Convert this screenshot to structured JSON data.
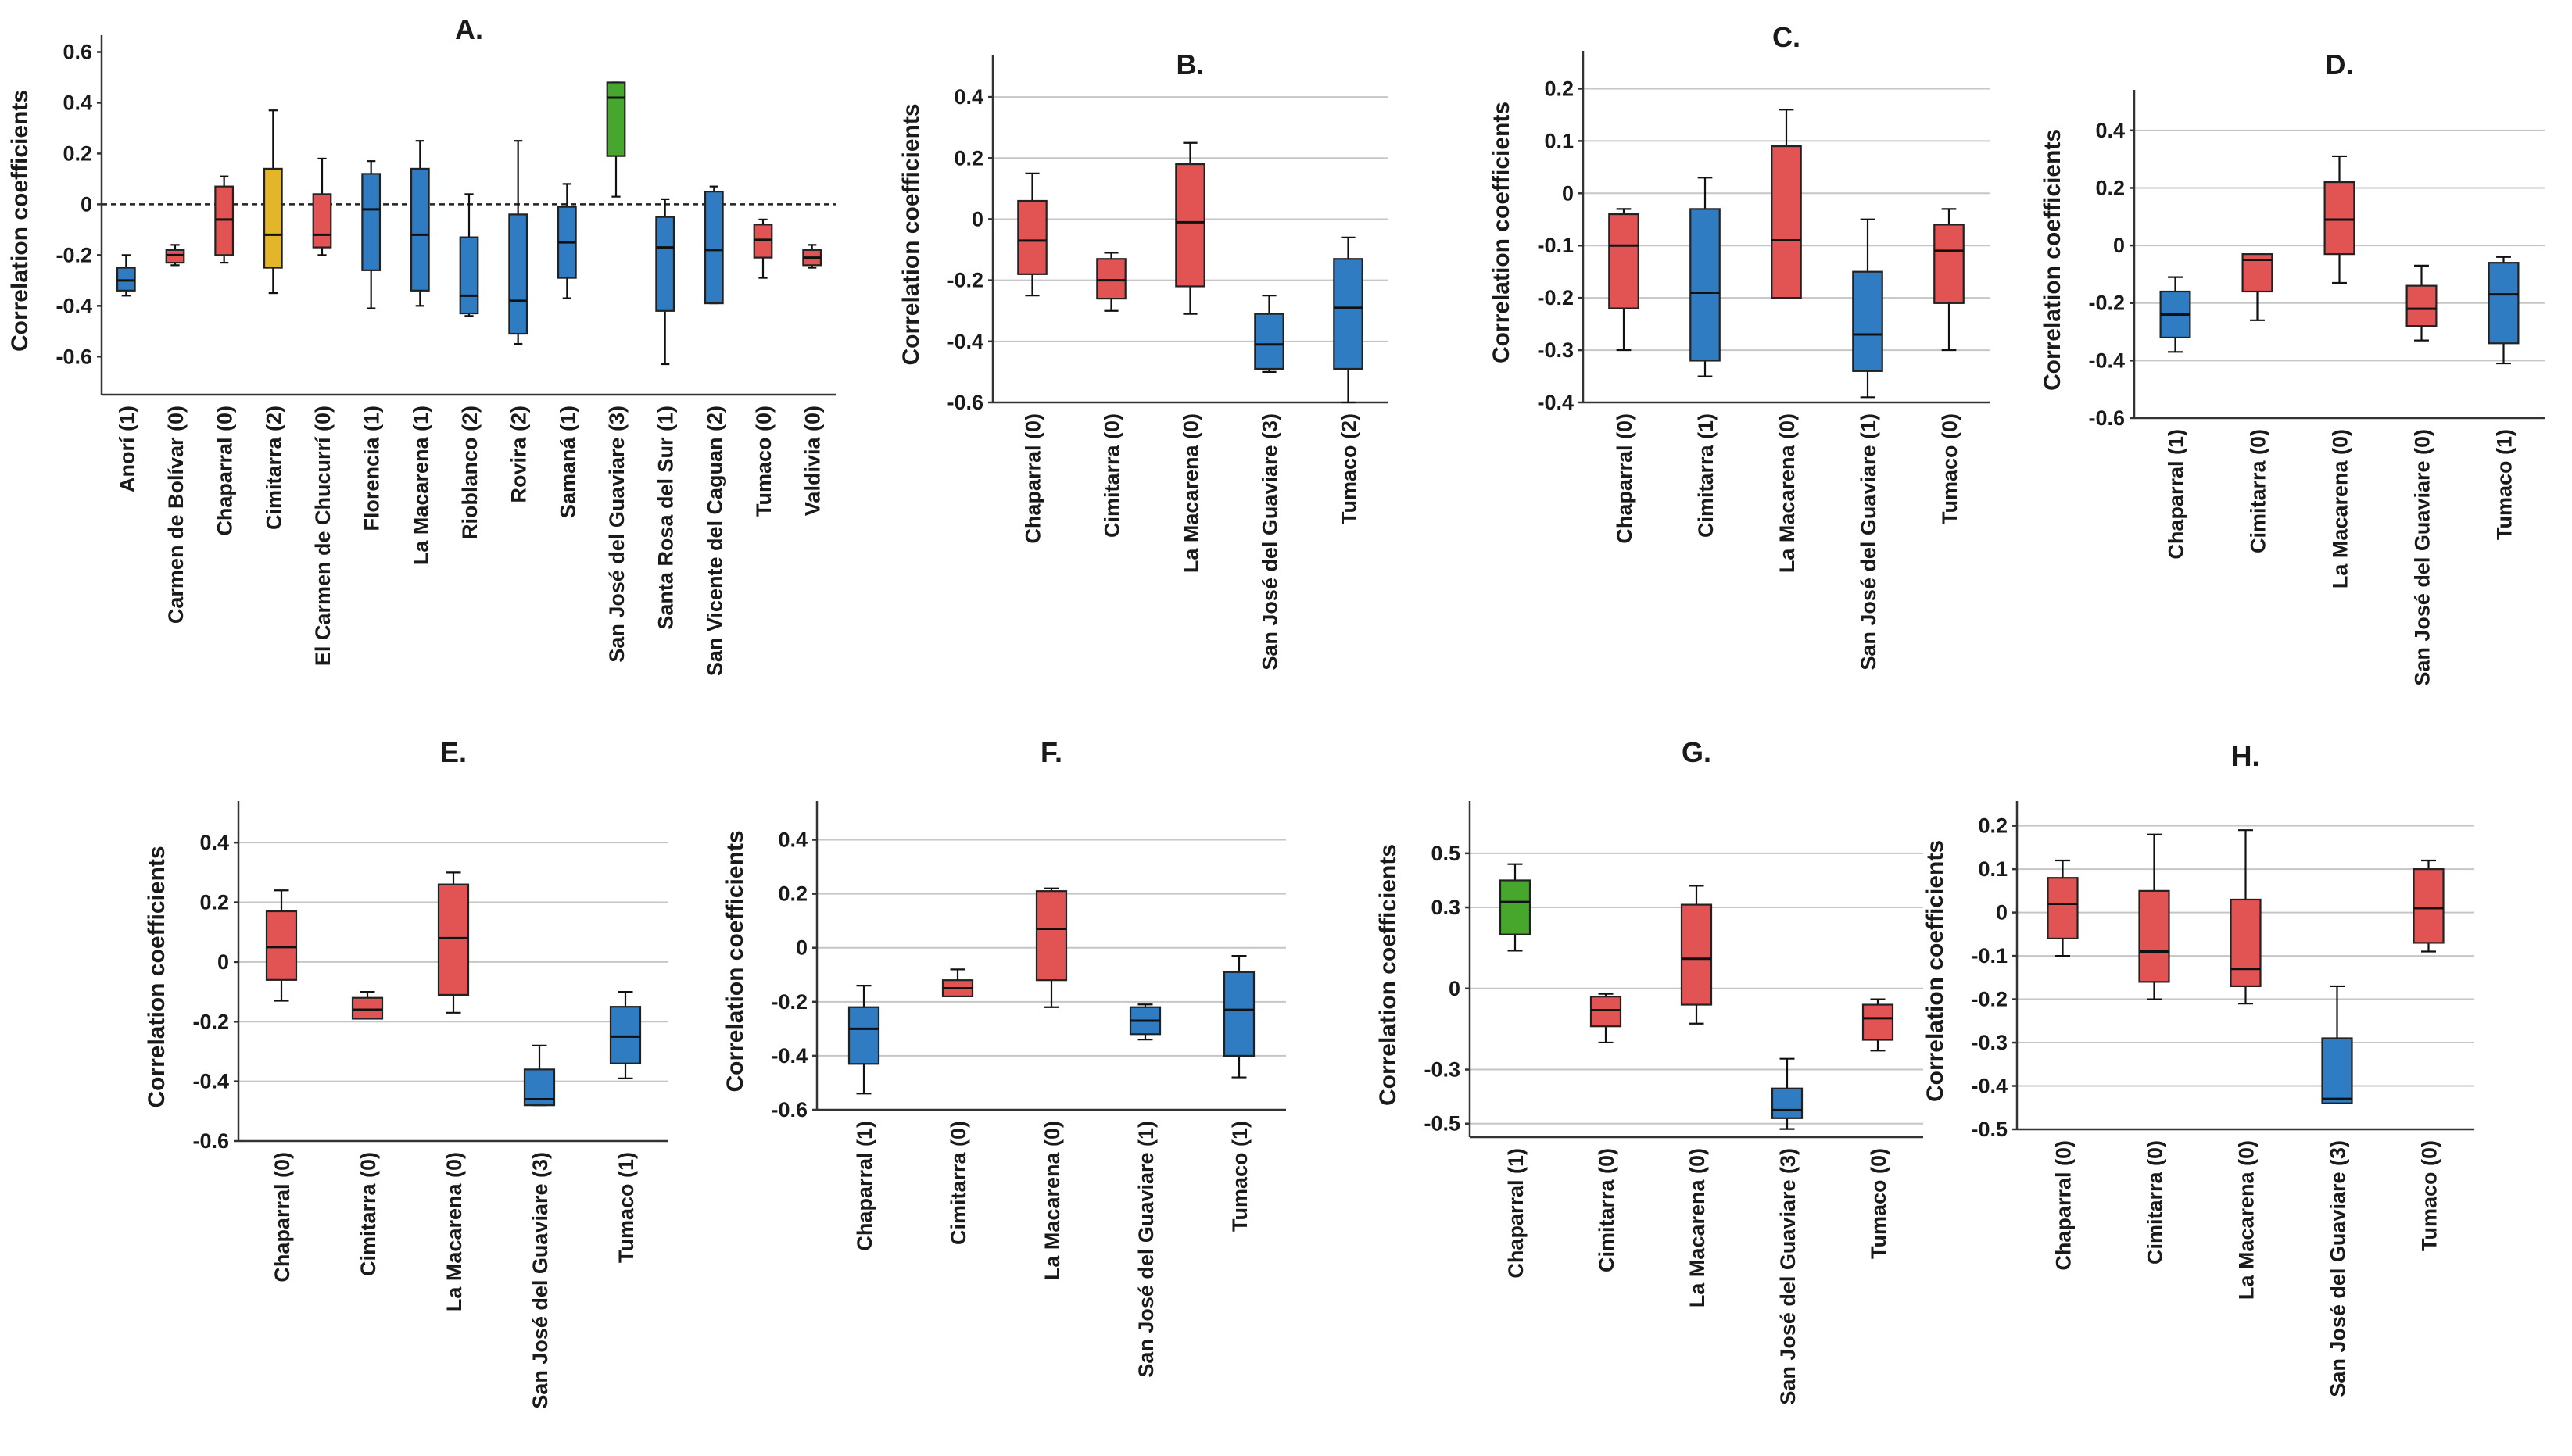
{
  "colors": {
    "red": "#e25454",
    "blue": "#2f7cc2",
    "yellow": "#e3b62a",
    "green": "#46a72c"
  },
  "chart_data": [
    {
      "type": "box",
      "title": "A.",
      "ylabel": "Correlation coefficients",
      "ylim": [
        -0.75,
        0.62
      ],
      "yticks": [
        "0.6",
        "0.4",
        "0.2",
        "0",
        "-0.2",
        "-0.4",
        "-0.6"
      ],
      "reference_line": 0,
      "grid": false,
      "boxes": [
        {
          "label": "Anorí (1)",
          "color": "blue",
          "min": -0.36,
          "q1": -0.34,
          "median": -0.3,
          "q3": -0.25,
          "max": -0.2
        },
        {
          "label": "Carmen de Bolívar (0)",
          "color": "red",
          "min": -0.24,
          "q1": -0.23,
          "median": -0.2,
          "q3": -0.18,
          "max": -0.16
        },
        {
          "label": "Chaparral (0)",
          "color": "red",
          "min": -0.23,
          "q1": -0.2,
          "median": -0.06,
          "q3": 0.07,
          "max": 0.11
        },
        {
          "label": "Cimitarra (2)",
          "color": "yellow",
          "min": -0.35,
          "q1": -0.25,
          "median": -0.12,
          "q3": 0.14,
          "max": 0.37
        },
        {
          "label": "El Carmen de Chucurrí (0)",
          "color": "red",
          "min": -0.2,
          "q1": -0.17,
          "median": -0.12,
          "q3": 0.04,
          "max": 0.18
        },
        {
          "label": "Florencia (1)",
          "color": "blue",
          "min": -0.41,
          "q1": -0.26,
          "median": -0.02,
          "q3": 0.12,
          "max": 0.17
        },
        {
          "label": "La Macarena (1)",
          "color": "blue",
          "min": -0.4,
          "q1": -0.34,
          "median": -0.12,
          "q3": 0.14,
          "max": 0.25
        },
        {
          "label": "Rioblanco (2)",
          "color": "blue",
          "min": -0.44,
          "q1": -0.43,
          "median": -0.36,
          "q3": -0.13,
          "max": 0.04
        },
        {
          "label": "Rovira (2)",
          "color": "blue",
          "min": -0.55,
          "q1": -0.51,
          "median": -0.38,
          "q3": -0.04,
          "max": 0.25
        },
        {
          "label": "Samaná (1)",
          "color": "blue",
          "min": -0.37,
          "q1": -0.29,
          "median": -0.15,
          "q3": -0.01,
          "max": 0.08
        },
        {
          "label": "San José del Guaviare (3)",
          "color": "green",
          "min": 0.03,
          "q1": 0.19,
          "median": 0.42,
          "q3": 0.48,
          "max": 0.48
        },
        {
          "label": "Santa Rosa del Sur (1)",
          "color": "blue",
          "min": -0.63,
          "q1": -0.42,
          "median": -0.17,
          "q3": -0.05,
          "max": 0.02
        },
        {
          "label": "San Vicente del Caguan (2)",
          "color": "blue",
          "min": -0.39,
          "q1": -0.39,
          "median": -0.18,
          "q3": 0.05,
          "max": 0.07
        },
        {
          "label": "Tumaco (0)",
          "color": "red",
          "min": -0.29,
          "q1": -0.21,
          "median": -0.14,
          "q3": -0.08,
          "max": -0.06
        },
        {
          "label": "Valdivia (0)",
          "color": "red",
          "min": -0.25,
          "q1": -0.24,
          "median": -0.21,
          "q3": -0.18,
          "max": -0.16
        }
      ]
    },
    {
      "type": "box",
      "title": "B.",
      "ylabel": "Correlation coefficients",
      "ylim": [
        -0.6,
        0.5
      ],
      "yticks": [
        "0.4",
        "0.2",
        "0",
        "-0.2",
        "-0.4",
        "-0.6"
      ],
      "grid": true,
      "boxes": [
        {
          "label": "Chaparral (0)",
          "color": "red",
          "min": -0.25,
          "q1": -0.18,
          "median": -0.07,
          "q3": 0.06,
          "max": 0.15
        },
        {
          "label": "Cimitarra (0)",
          "color": "red",
          "min": -0.3,
          "q1": -0.26,
          "median": -0.2,
          "q3": -0.13,
          "max": -0.11
        },
        {
          "label": "La Macarena (0)",
          "color": "red",
          "min": -0.31,
          "q1": -0.22,
          "median": -0.01,
          "q3": 0.18,
          "max": 0.25
        },
        {
          "label": "San José del Guaviare (3)",
          "color": "blue",
          "min": -0.5,
          "q1": -0.49,
          "median": -0.41,
          "q3": -0.31,
          "max": -0.25
        },
        {
          "label": "Tumaco (2)",
          "color": "blue",
          "min": -0.6,
          "q1": -0.49,
          "median": -0.29,
          "q3": -0.13,
          "max": -0.06
        }
      ]
    },
    {
      "type": "box",
      "title": "C.",
      "ylabel": "Correlation coefficients",
      "ylim": [
        -0.4,
        0.25
      ],
      "yticks": [
        "0.2",
        "0.1",
        "0",
        "-0.1",
        "-0.2",
        "-0.3",
        "-0.4"
      ],
      "grid": true,
      "boxes": [
        {
          "label": "Chaparral (0)",
          "color": "red",
          "min": -0.3,
          "q1": -0.22,
          "median": -0.1,
          "q3": -0.04,
          "max": -0.03
        },
        {
          "label": "Cimitarra (1)",
          "color": "blue",
          "min": -0.35,
          "q1": -0.32,
          "median": -0.19,
          "q3": -0.03,
          "max": 0.03
        },
        {
          "label": "La Macarena (0)",
          "color": "red",
          "min": -0.2,
          "q1": -0.2,
          "median": -0.09,
          "q3": 0.09,
          "max": 0.16
        },
        {
          "label": "San José del Guaviare (1)",
          "color": "blue",
          "min": -0.39,
          "q1": -0.34,
          "median": -0.27,
          "q3": -0.15,
          "max": -0.05
        },
        {
          "label": "Tumaco (0)",
          "color": "red",
          "min": -0.3,
          "q1": -0.21,
          "median": -0.11,
          "q3": -0.06,
          "max": -0.03
        }
      ]
    },
    {
      "type": "box",
      "title": "D.",
      "ylabel": "Correlation coefficients",
      "ylim": [
        -0.6,
        0.5
      ],
      "yticks": [
        "0.4",
        "0.2",
        "0",
        "-0.2",
        "-0.4",
        "-0.6"
      ],
      "grid": true,
      "boxes": [
        {
          "label": "Chaparral (1)",
          "color": "blue",
          "min": -0.37,
          "q1": -0.32,
          "median": -0.24,
          "q3": -0.16,
          "max": -0.11
        },
        {
          "label": "Cimitarra (0)",
          "color": "red",
          "min": -0.26,
          "q1": -0.16,
          "median": -0.05,
          "q3": -0.03,
          "max": -0.03
        },
        {
          "label": "La Macarena (0)",
          "color": "red",
          "min": -0.13,
          "q1": -0.03,
          "median": 0.09,
          "q3": 0.22,
          "max": 0.31
        },
        {
          "label": "San José del Guaviare (0)",
          "color": "red",
          "min": -0.33,
          "q1": -0.28,
          "median": -0.22,
          "q3": -0.14,
          "max": -0.07
        },
        {
          "label": "Tumaco (1)",
          "color": "blue",
          "min": -0.41,
          "q1": -0.34,
          "median": -0.17,
          "q3": -0.06,
          "max": -0.04
        }
      ]
    },
    {
      "type": "box",
      "title": "E.",
      "ylabel": "Correlation coefficients",
      "ylim": [
        -0.6,
        0.5
      ],
      "yticks": [
        "0.4",
        "0.2",
        "0",
        "-0.2",
        "-0.4",
        "-0.6"
      ],
      "grid": true,
      "boxes": [
        {
          "label": "Chaparral (0)",
          "color": "red",
          "min": -0.13,
          "q1": -0.06,
          "median": 0.05,
          "q3": 0.17,
          "max": 0.24
        },
        {
          "label": "Cimitarra (0)",
          "color": "red",
          "min": -0.19,
          "q1": -0.19,
          "median": -0.16,
          "q3": -0.12,
          "max": -0.1
        },
        {
          "label": "La Macarena (0)",
          "color": "red",
          "min": -0.17,
          "q1": -0.11,
          "median": 0.08,
          "q3": 0.26,
          "max": 0.3
        },
        {
          "label": "San José del Guaviare (3)",
          "color": "blue",
          "min": -0.48,
          "q1": -0.48,
          "median": -0.46,
          "q3": -0.36,
          "max": -0.28
        },
        {
          "label": "Tumaco (1)",
          "color": "blue",
          "min": -0.39,
          "q1": -0.34,
          "median": -0.25,
          "q3": -0.15,
          "max": -0.1
        }
      ]
    },
    {
      "type": "box",
      "title": "F.",
      "ylabel": "Correlation coefficients",
      "ylim": [
        -0.6,
        0.5
      ],
      "yticks": [
        "0.4",
        "0.2",
        "0",
        "-0.2",
        "-0.4",
        "-0.6"
      ],
      "grid": true,
      "boxes": [
        {
          "label": "Chaparral (1)",
          "color": "blue",
          "min": -0.54,
          "q1": -0.43,
          "median": -0.3,
          "q3": -0.22,
          "max": -0.14
        },
        {
          "label": "Cimitarra (0)",
          "color": "red",
          "min": -0.18,
          "q1": -0.18,
          "median": -0.15,
          "q3": -0.12,
          "max": -0.08
        },
        {
          "label": "La Macarena (0)",
          "color": "red",
          "min": -0.22,
          "q1": -0.12,
          "median": 0.07,
          "q3": 0.21,
          "max": 0.22
        },
        {
          "label": "San José del Guaviare (1)",
          "color": "blue",
          "min": -0.34,
          "q1": -0.32,
          "median": -0.27,
          "q3": -0.22,
          "max": -0.21
        },
        {
          "label": "Tumaco (1)",
          "color": "blue",
          "min": -0.48,
          "q1": -0.4,
          "median": -0.23,
          "q3": -0.09,
          "max": -0.03
        }
      ]
    },
    {
      "type": "box",
      "title": "G.",
      "ylabel": "Correlation coefficients",
      "ylim": [
        -0.55,
        0.65
      ],
      "yticks": [
        "0.5",
        "0.3",
        "0",
        "-0.3",
        "-0.5"
      ],
      "grid": true,
      "boxes": [
        {
          "label": "Chaparral (1)",
          "color": "green",
          "min": 0.14,
          "q1": 0.2,
          "median": 0.32,
          "q3": 0.4,
          "max": 0.46
        },
        {
          "label": "Cimitarra (0)",
          "color": "red",
          "min": -0.2,
          "q1": -0.14,
          "median": -0.08,
          "q3": -0.03,
          "max": -0.02
        },
        {
          "label": "La Macarena (0)",
          "color": "red",
          "min": -0.13,
          "q1": -0.06,
          "median": 0.11,
          "q3": 0.31,
          "max": 0.38
        },
        {
          "label": "San José del Guaviare (3)",
          "color": "blue",
          "min": -0.52,
          "q1": -0.48,
          "median": -0.45,
          "q3": -0.37,
          "max": -0.26
        },
        {
          "label": "Tumaco (0)",
          "color": "red",
          "min": -0.23,
          "q1": -0.19,
          "median": -0.11,
          "q3": -0.06,
          "max": -0.04
        }
      ]
    },
    {
      "type": "box",
      "title": "H.",
      "ylabel": "Correlation coefficients",
      "ylim": [
        -0.5,
        0.23
      ],
      "yticks": [
        "0.2",
        "0.1",
        "0",
        "-0.1",
        "-0.2",
        "-0.3",
        "-0.4",
        "-0.5"
      ],
      "grid": true,
      "boxes": [
        {
          "label": "Chaparral (0)",
          "color": "red",
          "min": -0.1,
          "q1": -0.06,
          "median": 0.02,
          "q3": 0.08,
          "max": 0.12
        },
        {
          "label": "Cimitarra (0)",
          "color": "red",
          "min": -0.2,
          "q1": -0.16,
          "median": -0.09,
          "q3": 0.05,
          "max": 0.18
        },
        {
          "label": "La Macarena (0)",
          "color": "red",
          "min": -0.21,
          "q1": -0.17,
          "median": -0.13,
          "q3": 0.03,
          "max": 0.19
        },
        {
          "label": "San José del Guaviare (3)",
          "color": "blue",
          "min": -0.44,
          "q1": -0.44,
          "median": -0.43,
          "q3": -0.29,
          "max": -0.17
        },
        {
          "label": "Tumaco (0)",
          "color": "red",
          "min": -0.09,
          "q1": -0.07,
          "median": 0.01,
          "q3": 0.1,
          "max": 0.12
        }
      ]
    }
  ]
}
